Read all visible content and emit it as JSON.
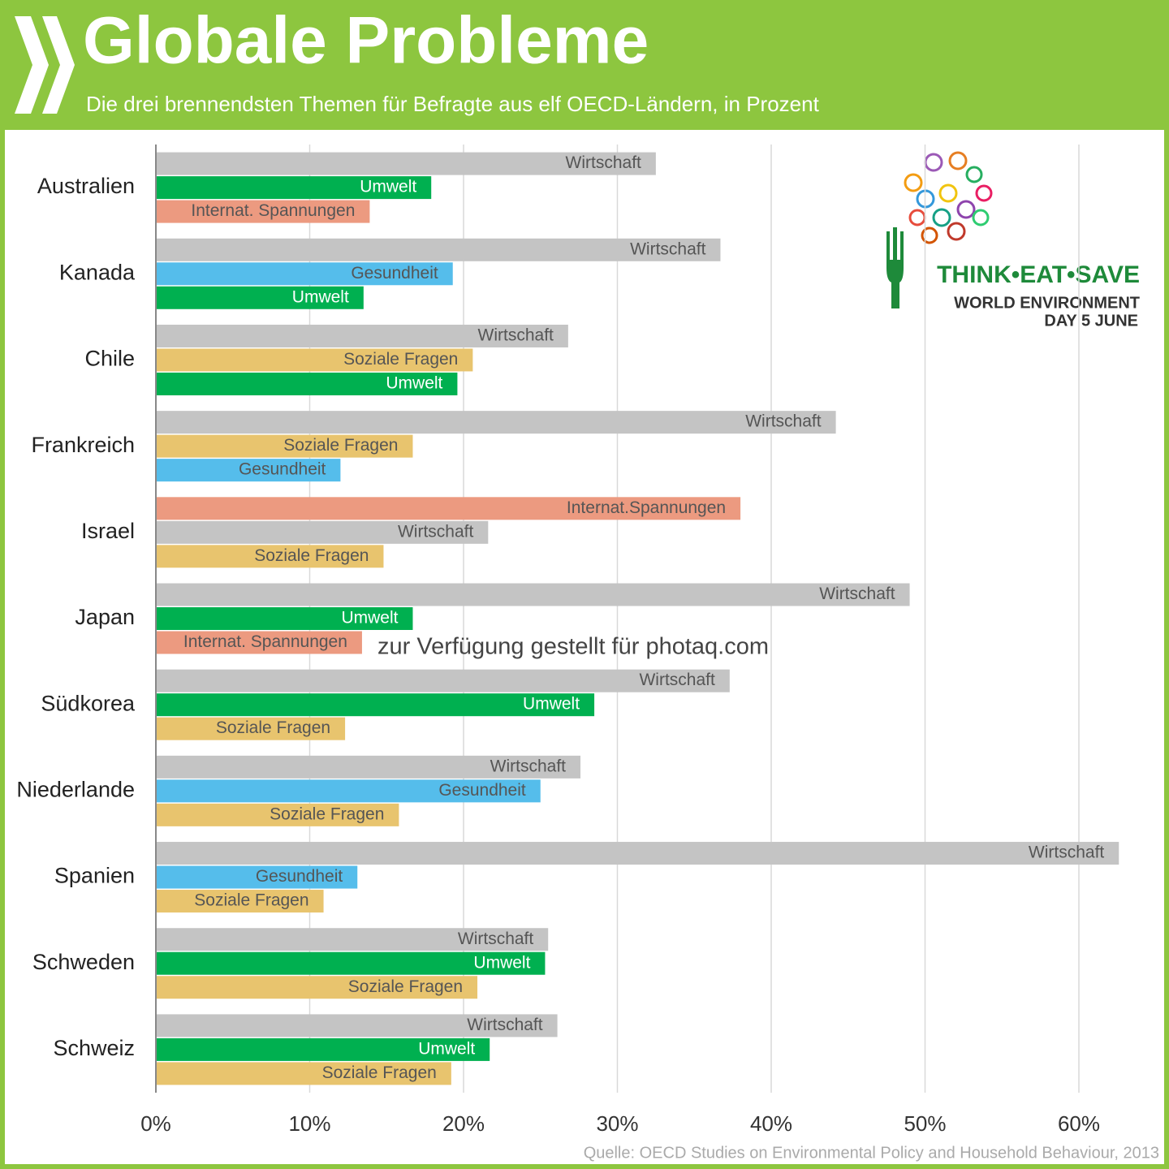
{
  "chart_data": {
    "type": "grouped-hbar",
    "title": "Globale Probleme",
    "subtitle": "Die drei brennendsten Themen für Befragte aus elf OECD-Ländern, in Prozent",
    "source": "Quelle: OECD Studies on Environmental Policy and Household Behaviour, 2013",
    "watermark": "zur Verfügung gestellt für photaq.com",
    "logo": {
      "line1": "THINK•EAT•SAVE",
      "line2": "WORLD ENVIRONMENT",
      "line3": "DAY 5 JUNE"
    },
    "xlim": [
      0,
      65
    ],
    "xticks": [
      {
        "value": 0,
        "label": "0%"
      },
      {
        "value": 10,
        "label": "10%"
      },
      {
        "value": 20,
        "label": "20%"
      },
      {
        "value": 30,
        "label": "30%"
      },
      {
        "value": 40,
        "label": "40%"
      },
      {
        "value": 50,
        "label": "50%"
      },
      {
        "value": 60,
        "label": "60%"
      }
    ],
    "grid": true,
    "groups": [
      {
        "category": "Australien",
        "bars": [
          {
            "label": "Wirtschaft",
            "value": 32.5,
            "color": "#c4c4c4",
            "label_color": "#555555"
          },
          {
            "label": "Umwelt",
            "value": 17.9,
            "color": "#00b050",
            "label_color": "#ffffff"
          },
          {
            "label": "Internat. Spannungen",
            "value": 13.9,
            "color": "#ec9a80",
            "label_color": "#555555"
          }
        ]
      },
      {
        "category": "Kanada",
        "bars": [
          {
            "label": "Wirtschaft",
            "value": 36.7,
            "color": "#c4c4c4",
            "label_color": "#555555"
          },
          {
            "label": "Gesundheit",
            "value": 19.3,
            "color": "#55bdeb",
            "label_color": "#555555"
          },
          {
            "label": "Umwelt",
            "value": 13.5,
            "color": "#00b050",
            "label_color": "#ffffff"
          }
        ]
      },
      {
        "category": "Chile",
        "bars": [
          {
            "label": "Wirtschaft",
            "value": 26.8,
            "color": "#c4c4c4",
            "label_color": "#555555"
          },
          {
            "label": "Soziale Fragen",
            "value": 20.6,
            "color": "#e8c46e",
            "label_color": "#555555"
          },
          {
            "label": "Umwelt",
            "value": 19.6,
            "color": "#00b050",
            "label_color": "#ffffff"
          }
        ]
      },
      {
        "category": "Frankreich",
        "bars": [
          {
            "label": "Wirtschaft",
            "value": 44.2,
            "color": "#c4c4c4",
            "label_color": "#555555"
          },
          {
            "label": "Soziale Fragen",
            "value": 16.7,
            "color": "#e8c46e",
            "label_color": "#555555"
          },
          {
            "label": "Gesundheit",
            "value": 12.0,
            "color": "#55bdeb",
            "label_color": "#555555"
          }
        ]
      },
      {
        "category": "Israel",
        "bars": [
          {
            "label": "Internat.Spannungen",
            "value": 38.0,
            "color": "#ec9a80",
            "label_color": "#555555"
          },
          {
            "label": "Wirtschaft",
            "value": 21.6,
            "color": "#c4c4c4",
            "label_color": "#555555"
          },
          {
            "label": "Soziale Fragen",
            "value": 14.8,
            "color": "#e8c46e",
            "label_color": "#555555"
          }
        ]
      },
      {
        "category": "Japan",
        "bars": [
          {
            "label": "Wirtschaft",
            "value": 49.0,
            "color": "#c4c4c4",
            "label_color": "#555555"
          },
          {
            "label": "Umwelt",
            "value": 16.7,
            "color": "#00b050",
            "label_color": "#ffffff"
          },
          {
            "label": "Internat. Spannungen",
            "value": 13.4,
            "color": "#ec9a80",
            "label_color": "#555555"
          }
        ]
      },
      {
        "category": "Südkorea",
        "bars": [
          {
            "label": "Wirtschaft",
            "value": 37.3,
            "color": "#c4c4c4",
            "label_color": "#555555"
          },
          {
            "label": "Umwelt",
            "value": 28.5,
            "color": "#00b050",
            "label_color": "#ffffff"
          },
          {
            "label": "Soziale Fragen",
            "value": 12.3,
            "color": "#e8c46e",
            "label_color": "#555555"
          }
        ]
      },
      {
        "category": "Niederlande",
        "bars": [
          {
            "label": "Wirtschaft",
            "value": 27.6,
            "color": "#c4c4c4",
            "label_color": "#555555"
          },
          {
            "label": "Gesundheit",
            "value": 25.0,
            "color": "#55bdeb",
            "label_color": "#555555"
          },
          {
            "label": "Soziale Fragen",
            "value": 15.8,
            "color": "#e8c46e",
            "label_color": "#555555"
          }
        ]
      },
      {
        "category": "Spanien",
        "bars": [
          {
            "label": "Wirtschaft",
            "value": 62.6,
            "color": "#c4c4c4",
            "label_color": "#555555"
          },
          {
            "label": "Gesundheit",
            "value": 13.1,
            "color": "#55bdeb",
            "label_color": "#555555"
          },
          {
            "label": "Soziale Fragen",
            "value": 10.9,
            "color": "#e8c46e",
            "label_color": "#555555"
          }
        ]
      },
      {
        "category": "Schweden",
        "bars": [
          {
            "label": "Wirtschaft",
            "value": 25.5,
            "color": "#c4c4c4",
            "label_color": "#555555"
          },
          {
            "label": "Umwelt",
            "value": 25.3,
            "color": "#00b050",
            "label_color": "#ffffff"
          },
          {
            "label": "Soziale Fragen",
            "value": 20.9,
            "color": "#e8c46e",
            "label_color": "#555555"
          }
        ]
      },
      {
        "category": "Schweiz",
        "bars": [
          {
            "label": "Wirtschaft",
            "value": 26.1,
            "color": "#c4c4c4",
            "label_color": "#555555"
          },
          {
            "label": "Umwelt",
            "value": 21.7,
            "color": "#00b050",
            "label_color": "#ffffff"
          },
          {
            "label": "Soziale Fragen",
            "value": 19.2,
            "color": "#e8c46e",
            "label_color": "#555555"
          }
        ]
      }
    ]
  }
}
